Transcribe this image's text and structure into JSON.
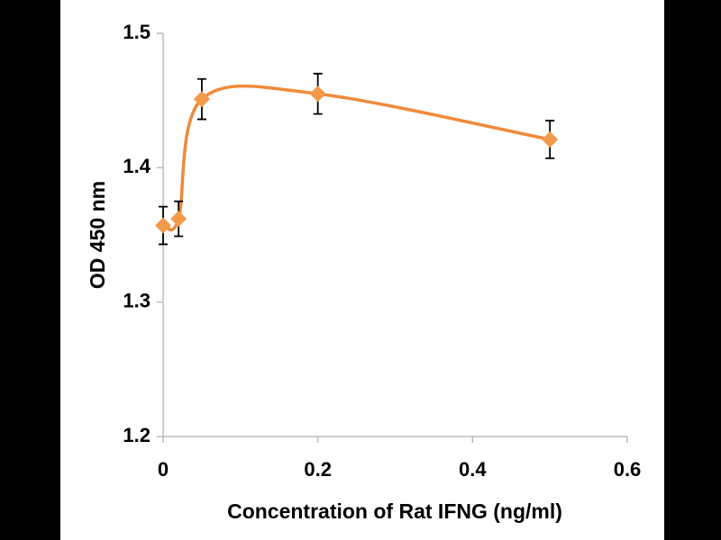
{
  "chart_data": {
    "type": "scatter",
    "x_label": "Concentration of Rat IFNG (ng/ml)",
    "y_label": "OD 450 nm",
    "xlim": [
      0,
      0.6
    ],
    "xticks": [
      0,
      0.2,
      0.4,
      0.6
    ],
    "ylim": [
      1.2,
      1.5
    ],
    "yticks": [
      1.2,
      1.3,
      1.4,
      1.5
    ],
    "grid": false,
    "smooth_line": true,
    "series": [
      {
        "color": "#f39a4a",
        "line_color": "#ef8a3a",
        "x": [
          0,
          0.02,
          0.05,
          0.2,
          0.5
        ],
        "values": [
          1.357,
          1.362,
          1.451,
          1.455,
          1.421
        ],
        "errors": [
          0.014,
          0.013,
          0.015,
          0.015,
          0.014
        ]
      }
    ]
  }
}
